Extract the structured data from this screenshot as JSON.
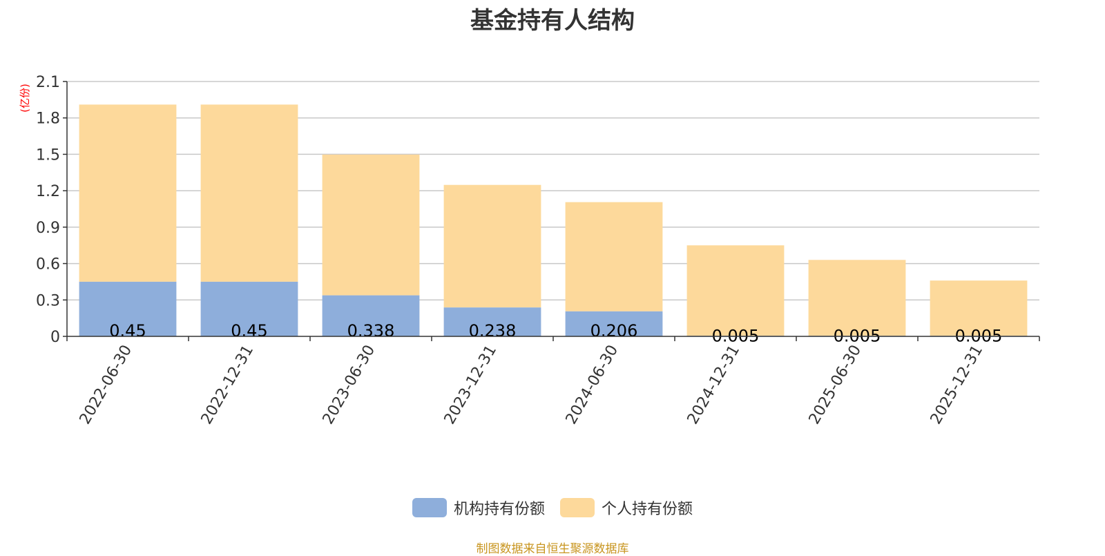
{
  "title": "基金持有人结构",
  "source_text": "制图数据来自恒生聚源数据库",
  "colors": {
    "institutional": "#8eaedb",
    "individual": "#fdd99b",
    "grid": "#c8c8c8",
    "axis": "#333333",
    "unit": "#ff0000",
    "source": "#c8951f"
  },
  "chart_data": {
    "type": "bar",
    "stacked": true,
    "title": "基金持有人结构",
    "ylabel": "(亿份)",
    "xlabel": "",
    "ylim": [
      0,
      2.1
    ],
    "yticks": [
      "0",
      "0.3",
      "0.6",
      "0.9",
      "1.2",
      "1.5",
      "1.8",
      "2.1"
    ],
    "grid": true,
    "legend_position": "bottom",
    "categories": [
      "2022-06-30",
      "2022-12-31",
      "2023-06-30",
      "2023-12-31",
      "2024-06-30",
      "2024-12-31",
      "2025-06-30",
      "2025-12-31"
    ],
    "series": [
      {
        "name": "机构持有份额",
        "values": [
          0.45,
          0.45,
          0.338,
          0.238,
          0.206,
          0.005,
          0.005,
          0.005
        ],
        "labels": [
          "0.45",
          "0.45",
          "0.338",
          "0.238",
          "0.206",
          "0.005",
          "0.005",
          "0.005"
        ]
      },
      {
        "name": "个人持有份额",
        "values": [
          1.46,
          1.46,
          1.16,
          1.01,
          0.9,
          0.745,
          0.625,
          0.455
        ]
      }
    ]
  }
}
